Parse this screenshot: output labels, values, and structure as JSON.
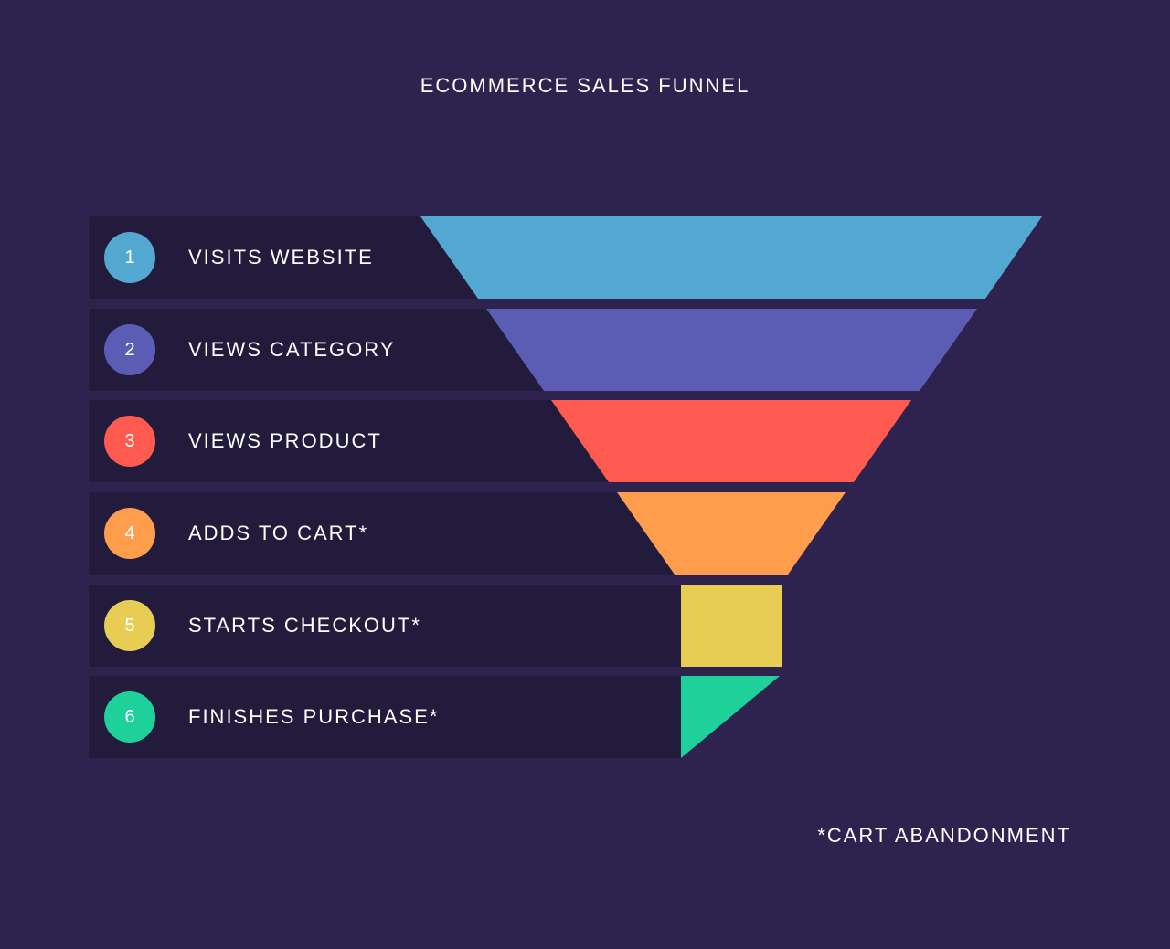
{
  "title": "ECOMMERCE SALES FUNNEL",
  "footnote": "*CART ABANDONMENT",
  "steps": [
    {
      "number": "1",
      "label": "VISITS WEBSITE",
      "color": "#52a8d0"
    },
    {
      "number": "2",
      "label": "VIEWS CATEGORY",
      "color": "#5b5db5"
    },
    {
      "number": "3",
      "label": "VIEWS PRODUCT",
      "color": "#fe5a4f"
    },
    {
      "number": "4",
      "label": "ADDS TO CART*",
      "color": "#fe9d4c"
    },
    {
      "number": "5",
      "label": "STARTS CHECKOUT*",
      "color": "#e7cd53"
    },
    {
      "number": "6",
      "label": "FINISHES PURCHASE*",
      "color": "#1ed09a"
    }
  ],
  "colors": {
    "background": "#2e234e",
    "row_background": "#231b3c",
    "text": "#ffffff"
  }
}
